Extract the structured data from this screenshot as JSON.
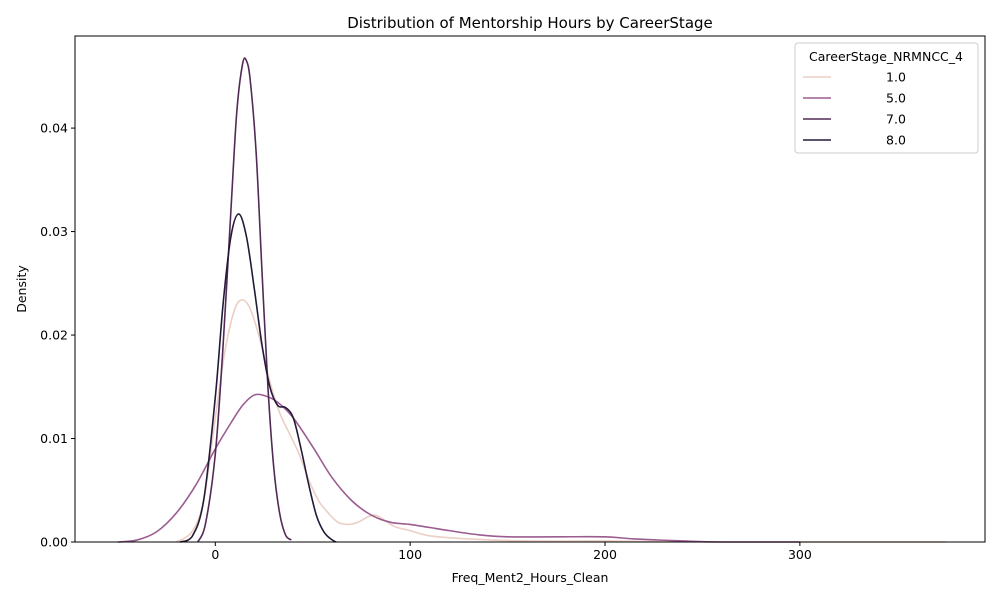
{
  "chart_data": {
    "type": "line",
    "title": "Distribution of Mentorship Hours by CareerStage",
    "xlabel": "Freq_Ment2_Hours_Clean",
    "ylabel": "Density",
    "xlim": [
      -72,
      395
    ],
    "ylim": [
      0,
      0.0489
    ],
    "x_ticks": [
      0,
      100,
      200,
      300
    ],
    "x_tick_labels": [
      "0",
      "100",
      "200",
      "300"
    ],
    "y_ticks": [
      0,
      0.01,
      0.02,
      0.03,
      0.04
    ],
    "y_tick_labels": [
      "0.00",
      "0.01",
      "0.02",
      "0.03",
      "0.04"
    ],
    "grid": false,
    "legend": {
      "title": "CareerStage_NRMNCC_4",
      "placement": "top-right",
      "entries": [
        "1.0",
        "5.0",
        "7.0",
        "8.0"
      ]
    },
    "series": [
      {
        "name": "1.0",
        "color": "#ebcfc5",
        "points": [
          [
            -20,
            0
          ],
          [
            -12,
            0.001
          ],
          [
            -6,
            0.004
          ],
          [
            0,
            0.012
          ],
          [
            5,
            0.0185
          ],
          [
            10,
            0.0225
          ],
          [
            14,
            0.0234
          ],
          [
            18,
            0.0225
          ],
          [
            23,
            0.0195
          ],
          [
            28,
            0.0155
          ],
          [
            33,
            0.0125
          ],
          [
            38,
            0.0105
          ],
          [
            43,
            0.0085
          ],
          [
            48,
            0.006
          ],
          [
            53,
            0.004
          ],
          [
            58,
            0.0028
          ],
          [
            63,
            0.0019
          ],
          [
            68,
            0.0017
          ],
          [
            73,
            0.0019
          ],
          [
            78,
            0.0024
          ],
          [
            82,
            0.0026
          ],
          [
            86,
            0.0022
          ],
          [
            92,
            0.0015
          ],
          [
            100,
            0.0011
          ],
          [
            110,
            0.0006
          ],
          [
            130,
            0.0003
          ],
          [
            160,
            0.0001
          ],
          [
            200,
            0.0001
          ],
          [
            260,
            0
          ],
          [
            320,
            0
          ],
          [
            375,
            0
          ]
        ]
      },
      {
        "name": "5.0",
        "color": "#9b5c90",
        "points": [
          [
            -50,
            0
          ],
          [
            -40,
            0.0002
          ],
          [
            -30,
            0.001
          ],
          [
            -20,
            0.0028
          ],
          [
            -10,
            0.0055
          ],
          [
            0,
            0.009
          ],
          [
            8,
            0.0115
          ],
          [
            14,
            0.0132
          ],
          [
            20,
            0.0142
          ],
          [
            26,
            0.0141
          ],
          [
            32,
            0.0135
          ],
          [
            40,
            0.012
          ],
          [
            50,
            0.0092
          ],
          [
            60,
            0.0062
          ],
          [
            70,
            0.004
          ],
          [
            80,
            0.0026
          ],
          [
            90,
            0.0019
          ],
          [
            100,
            0.0017
          ],
          [
            110,
            0.0014
          ],
          [
            120,
            0.0011
          ],
          [
            135,
            0.0007
          ],
          [
            150,
            0.0005
          ],
          [
            175,
            0.0005
          ],
          [
            200,
            0.0005
          ],
          [
            215,
            0.0003
          ],
          [
            240,
            0.0001
          ],
          [
            260,
            0
          ],
          [
            300,
            0
          ]
        ]
      },
      {
        "name": "7.0",
        "color": "#522a56",
        "points": [
          [
            -9,
            0
          ],
          [
            -5,
            0.0018
          ],
          [
            0,
            0.0085
          ],
          [
            4,
            0.019
          ],
          [
            8,
            0.032
          ],
          [
            11,
            0.0415
          ],
          [
            14,
            0.0462
          ],
          [
            16,
            0.0465
          ],
          [
            18,
            0.0445
          ],
          [
            21,
            0.0375
          ],
          [
            24,
            0.026
          ],
          [
            27,
            0.015
          ],
          [
            30,
            0.0072
          ],
          [
            33,
            0.0028
          ],
          [
            36,
            0.0007
          ],
          [
            39,
            0.0002
          ]
        ]
      },
      {
        "name": "8.0",
        "color": "#241a38",
        "points": [
          [
            -18,
            0
          ],
          [
            -12,
            0.0005
          ],
          [
            -6,
            0.004
          ],
          [
            0,
            0.014
          ],
          [
            4,
            0.023
          ],
          [
            8,
            0.0295
          ],
          [
            12,
            0.0317
          ],
          [
            16,
            0.0295
          ],
          [
            20,
            0.0245
          ],
          [
            24,
            0.019
          ],
          [
            28,
            0.015
          ],
          [
            32,
            0.0132
          ],
          [
            36,
            0.013
          ],
          [
            40,
            0.012
          ],
          [
            44,
            0.009
          ],
          [
            48,
            0.0055
          ],
          [
            52,
            0.0025
          ],
          [
            56,
            0.0009
          ],
          [
            60,
            0.0002
          ],
          [
            62,
            0
          ]
        ]
      }
    ]
  }
}
